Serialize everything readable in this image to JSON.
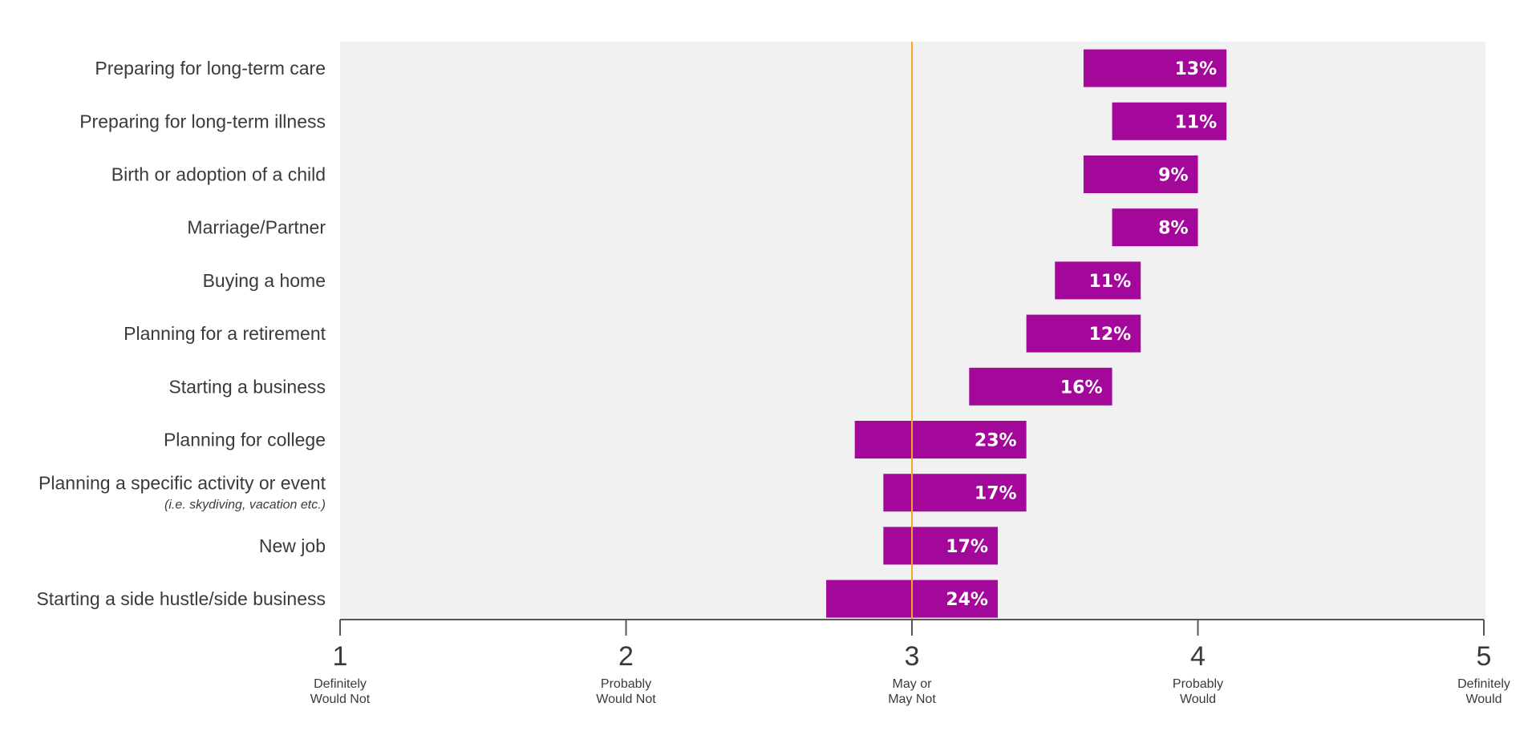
{
  "chart_data": {
    "type": "bar",
    "orientation": "horizontal-floating",
    "colors": {
      "bar": "#a3089a",
      "reference_line": "#f5a623",
      "plot_background": "#f1f1f1",
      "axis": "#555555",
      "text": "#3a3a3a"
    },
    "xlim": [
      1,
      5
    ],
    "reference_value": 3,
    "ticks": [
      {
        "value": 1,
        "label": "1",
        "desc": [
          "Definitely",
          "Would Not"
        ]
      },
      {
        "value": 2,
        "label": "2",
        "desc": [
          "Probably",
          "Would Not"
        ]
      },
      {
        "value": 3,
        "label": "3",
        "desc": [
          "May or",
          "May Not"
        ]
      },
      {
        "value": 4,
        "label": "4",
        "desc": [
          "Probably",
          "Would"
        ]
      },
      {
        "value": 5,
        "label": "5",
        "desc": [
          "Definitely",
          "Would"
        ]
      }
    ],
    "categories": [
      {
        "label": "Preparing for long-term care",
        "sub": "",
        "start": 3.6,
        "end": 4.1,
        "value": "13%"
      },
      {
        "label": "Preparing for long-term illness",
        "sub": "",
        "start": 3.7,
        "end": 4.1,
        "value": "11%"
      },
      {
        "label": "Birth or adoption of a child",
        "sub": "",
        "start": 3.6,
        "end": 4.0,
        "value": "9%"
      },
      {
        "label": "Marriage/Partner",
        "sub": "",
        "start": 3.7,
        "end": 4.0,
        "value": "8%"
      },
      {
        "label": "Buying a home",
        "sub": "",
        "start": 3.5,
        "end": 3.8,
        "value": "11%"
      },
      {
        "label": "Planning for a retirement",
        "sub": "",
        "start": 3.4,
        "end": 3.8,
        "value": "12%"
      },
      {
        "label": "Starting a business",
        "sub": "",
        "start": 3.2,
        "end": 3.7,
        "value": "16%"
      },
      {
        "label": "Planning for college",
        "sub": "",
        "start": 2.8,
        "end": 3.4,
        "value": "23%"
      },
      {
        "label": "Planning a specific activity or event",
        "sub": "(i.e. skydiving, vacation etc.)",
        "start": 2.9,
        "end": 3.4,
        "value": "17%"
      },
      {
        "label": "New job",
        "sub": "",
        "start": 2.9,
        "end": 3.3,
        "value": "17%"
      },
      {
        "label": "Starting a side hustle/side business",
        "sub": "",
        "start": 2.7,
        "end": 3.3,
        "value": "24%"
      }
    ]
  }
}
